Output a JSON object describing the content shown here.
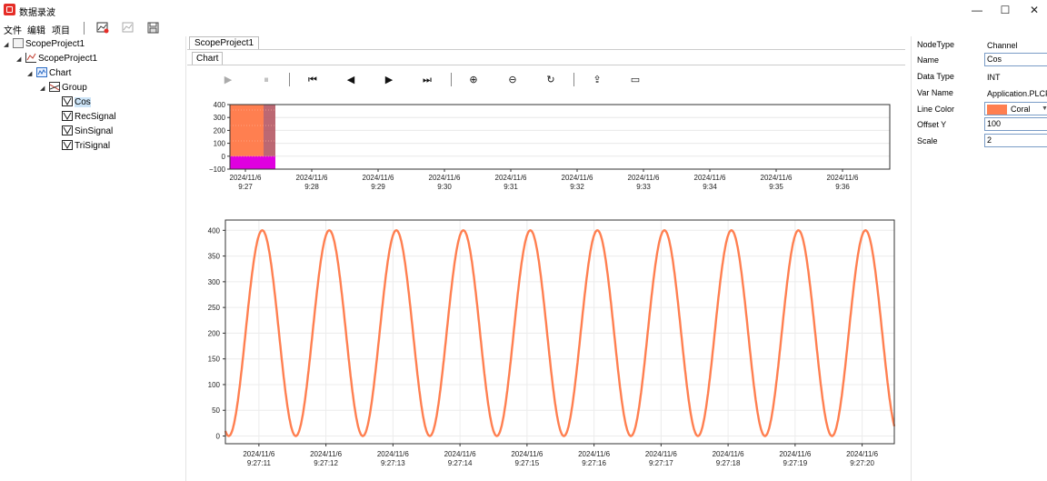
{
  "window": {
    "title": "数据录波",
    "minimize": "—",
    "maximize": "☐",
    "close": "✕"
  },
  "menu": {
    "items": [
      "文件",
      "编辑",
      "项目"
    ]
  },
  "tree": {
    "items": [
      {
        "label": "ScopeProject1",
        "icon": "folder-icon"
      },
      {
        "label": "ScopeProject1",
        "icon": "project-icon"
      },
      {
        "label": "Chart",
        "icon": "chart-icon"
      },
      {
        "label": "Group",
        "icon": "group-icon"
      },
      {
        "label": "Cos",
        "icon": "signal-icon"
      },
      {
        "label": "RecSignal",
        "icon": "signal-icon"
      },
      {
        "label": "SinSignal",
        "icon": "signal-icon"
      },
      {
        "label": "TriSignal",
        "icon": "signal-icon"
      }
    ]
  },
  "tabs": {
    "document": "ScopeProject1",
    "chart": "Chart"
  },
  "controls": {
    "play": "▶",
    "pause": "⏸",
    "first": "⏮",
    "prev": "◀",
    "next": "▶",
    "last": "⏭",
    "zoom_in": "⊕",
    "zoom_out": "⊖",
    "reset": "↻",
    "export": "⇪",
    "open": "▭"
  },
  "properties": {
    "rows": [
      {
        "key": "NodeType",
        "value": "Channel"
      },
      {
        "key": "Name",
        "value": "Cos"
      },
      {
        "key": "Data Type",
        "value": "INT"
      },
      {
        "key": "Var Name",
        "value": "Application.PLCPRG"
      },
      {
        "key": "Line Color",
        "value": "Coral"
      },
      {
        "key": "Offset Y",
        "value": "100"
      },
      {
        "key": "Scale",
        "value": "2"
      }
    ],
    "line_color_hex": "#ff7f50"
  },
  "chart_data": [
    {
      "type": "area",
      "ylim": [
        -100,
        400
      ],
      "yticks": [
        "400",
        "300",
        "200",
        "100",
        "0",
        "−100"
      ],
      "xtick_labels": [
        [
          "2024/11/6",
          "9:27"
        ],
        [
          "2024/11/6",
          "9:28"
        ],
        [
          "2024/11/6",
          "9:29"
        ],
        [
          "2024/11/6",
          "9:30"
        ],
        [
          "2024/11/6",
          "9:31"
        ],
        [
          "2024/11/6",
          "9:32"
        ],
        [
          "2024/11/6",
          "9:33"
        ],
        [
          "2024/11/6",
          "9:34"
        ],
        [
          "2024/11/6",
          "9:35"
        ],
        [
          "2024/11/6",
          "9:36"
        ]
      ],
      "series_colors": [
        "#ff7f50",
        "#b04d5a",
        "#e000e0"
      ]
    },
    {
      "type": "line",
      "ylim": [
        -15,
        420
      ],
      "yticks": [
        0,
        50,
        100,
        150,
        200,
        250,
        300,
        350,
        400
      ],
      "xtick_labels": [
        [
          "2024/11/6",
          "9:27:11"
        ],
        [
          "2024/11/6",
          "9:27:12"
        ],
        [
          "2024/11/6",
          "9:27:13"
        ],
        [
          "2024/11/6",
          "9:27:14"
        ],
        [
          "2024/11/6",
          "9:27:15"
        ],
        [
          "2024/11/6",
          "9:27:16"
        ],
        [
          "2024/11/6",
          "9:27:17"
        ],
        [
          "2024/11/6",
          "9:27:18"
        ],
        [
          "2024/11/6",
          "9:27:19"
        ],
        [
          "2024/11/6",
          "9:27:20"
        ]
      ],
      "series": [
        {
          "color": "#ff7f50",
          "amplitude": 200,
          "offset": 200,
          "period_s": 1.0,
          "x_range_s": [
            10.5,
            20.48
          ],
          "phase_peak_at_s": 11.05
        }
      ]
    }
  ]
}
